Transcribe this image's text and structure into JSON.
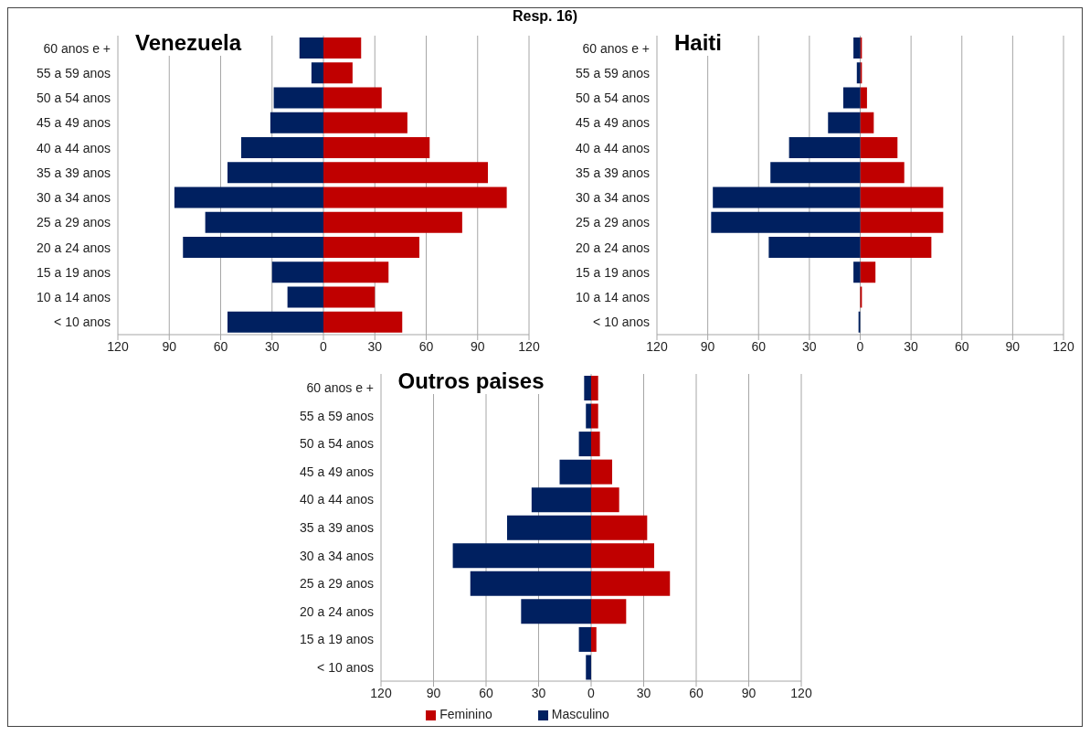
{
  "chart_data": [
    {
      "type": "bar",
      "orientation": "horizontal",
      "stacked": true,
      "title": "Venezuela",
      "annotations": [
        "Resp. 16)"
      ],
      "categories": [
        "60 anos e +",
        "55 a 59 anos",
        "50 a 54 anos",
        "45 a 49 anos",
        "40 a 44 anos",
        "35 a 39 anos",
        "30 a 34 anos",
        "25 a 29 anos",
        "20 a 24 anos",
        "15 a 19 anos",
        "10 a 14 anos",
        "< 10 anos"
      ],
      "series": [
        {
          "color": "#c00000",
          "values": [
            22,
            17,
            34,
            49,
            62,
            96,
            107,
            81,
            56,
            38,
            30,
            46
          ]
        },
        {
          "color": "#002060",
          "values": [
            -14,
            -7,
            -29,
            -31,
            -48,
            -56,
            -87,
            -69,
            -82,
            -30,
            -21,
            -56
          ]
        }
      ],
      "xlim": [
        -120,
        120
      ],
      "xticks": [
        {
          "value": -120,
          "label": "120"
        },
        {
          "value": -90,
          "label": "90"
        },
        {
          "value": -60,
          "label": "60"
        },
        {
          "value": -30,
          "label": "30"
        },
        0,
        30,
        60,
        90,
        120
      ],
      "grid": "x"
    },
    {
      "type": "bar",
      "orientation": "horizontal",
      "stacked": true,
      "title": "Haiti",
      "categories": [
        "60 anos e +",
        "55 a 59 anos",
        "50 a 54 anos",
        "45 a 49 anos",
        "40 a 44 anos",
        "35 a 39 anos",
        "30 a 34 anos",
        "25 a 29 anos",
        "20 a 24 anos",
        "15 a 19 anos",
        "10 a 14 anos",
        "< 10 anos"
      ],
      "series": [
        {
          "color": "#c00000",
          "values": [
            1,
            1,
            4,
            8,
            22,
            26,
            49,
            49,
            42,
            9,
            1,
            null
          ]
        },
        {
          "color": "#002060",
          "values": [
            -4,
            -2,
            -10,
            -19,
            -42,
            -53,
            -87,
            -88,
            -54,
            -4,
            null,
            -1
          ]
        }
      ],
      "xlim": [
        -120,
        120
      ],
      "xticks": [
        {
          "value": -120,
          "label": "120"
        },
        {
          "value": -90,
          "label": "90"
        },
        {
          "value": -60,
          "label": "60"
        },
        {
          "value": -30,
          "label": "30"
        },
        0,
        30,
        60,
        90,
        120
      ],
      "grid": "x"
    },
    {
      "type": "bar",
      "orientation": "horizontal",
      "stacked": true,
      "title": "Outros paises",
      "legend": "bottom",
      "categories": [
        "60 anos e +",
        "55 a 59 anos",
        "50 a 54 anos",
        "45 a 49 anos",
        "40 a 44 anos",
        "35 a 39 anos",
        "30 a 34 anos",
        "25 a 29 anos",
        "20 a 24 anos",
        "15 a 19 anos",
        "< 10 anos"
      ],
      "series": [
        {
          "name": "Feminino",
          "color": "#c00000",
          "values": [
            4,
            4,
            5,
            12,
            16,
            32,
            36,
            45,
            20,
            3,
            null
          ]
        },
        {
          "name": "Masculino",
          "color": "#002060",
          "values": [
            -4,
            -3,
            -7,
            -18,
            -34,
            -48,
            -79,
            -69,
            -40,
            -7,
            -3
          ]
        }
      ],
      "xlim": [
        -120,
        120
      ],
      "xticks": [
        {
          "value": -120,
          "label": "120"
        },
        {
          "value": -90,
          "label": "90"
        },
        {
          "value": -60,
          "label": "60"
        },
        {
          "value": -30,
          "label": "30"
        },
        0,
        30,
        60,
        90,
        120
      ],
      "grid": "x"
    }
  ]
}
